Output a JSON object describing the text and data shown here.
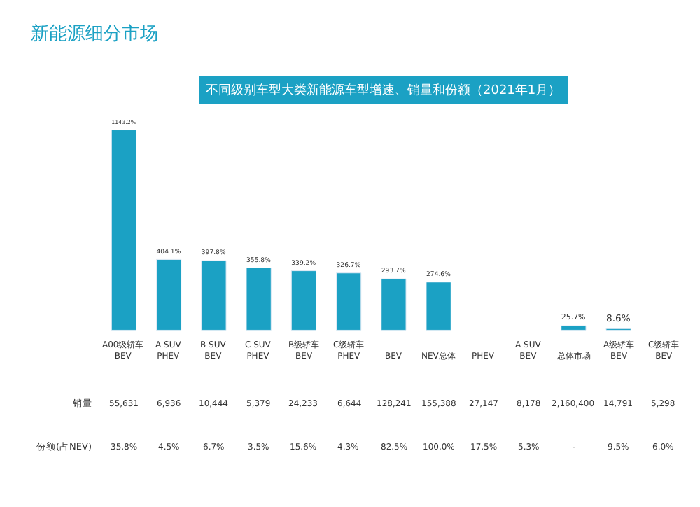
{
  "chart_data": {
    "type": "bar",
    "title": "新能源细分市场",
    "subtitle": "不同级别车型大类新能源车型增速、销量和份额（2021年1月）",
    "categories": [
      "A00级轿车 BEV",
      "A SUV PHEV",
      "B SUV BEV",
      "C SUV PHEV",
      "B级轿车 BEV",
      "C级轿车 PHEV",
      "BEV",
      "NEV总体",
      "PHEV",
      "A SUV BEV",
      "总体市场",
      "A级轿车 BEV",
      "C级轿车 BEV"
    ],
    "series": [
      {
        "color": "#1ba1c4",
        "values": [
          1143.2,
          404.1,
          397.8,
          355.8,
          339.2,
          326.7,
          293.7,
          274.6,
          null,
          null,
          25.7,
          8.6,
          null
        ],
        "value_labels": [
          "1143.2%",
          "404.1%",
          "397.8%",
          "355.8%",
          "339.2%",
          "326.7%",
          "293.7%",
          "274.6%",
          null,
          null,
          "25.7%",
          "8.6%",
          null
        ]
      }
    ],
    "annotations": [
      "销量",
      "55,631",
      "6,936",
      "10,444",
      "5,379",
      "24,233",
      "6,644",
      "128,241",
      "155,388",
      "27,147",
      "8,178",
      "2,160,400",
      "14,791",
      "5,298",
      "份额(占NEV)",
      "35.8%",
      "4.5%",
      "6.7%",
      "3.5%",
      "15.6%",
      "4.3%",
      "82.5%",
      "100.0%",
      "17.5%",
      "5.3%",
      "-",
      "9.5%",
      "6.0%"
    ]
  }
}
